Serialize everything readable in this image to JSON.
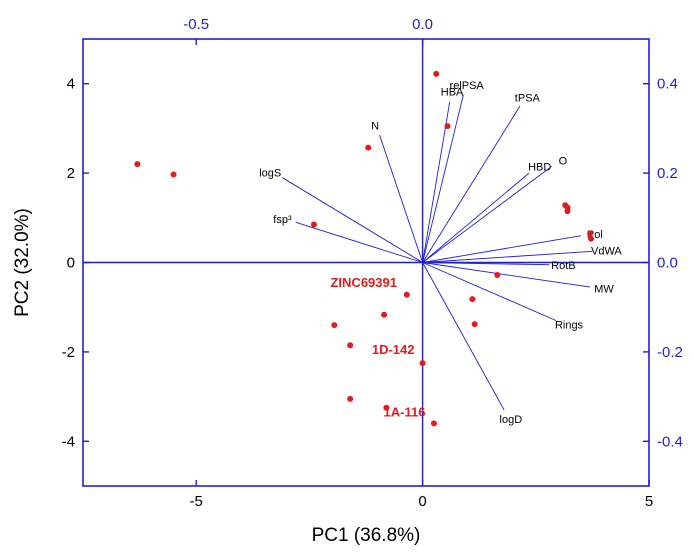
{
  "chart_data": {
    "type": "scatter",
    "subtype": "PCA biplot",
    "xlabel": "PC1 (36.8%)",
    "ylabel": "PC2 (32.0%)",
    "xlim": [
      -7.5,
      5
    ],
    "ylim": [
      -5,
      5
    ],
    "x_ticks": [
      -5,
      0,
      5
    ],
    "y_ticks": [
      -4,
      -2,
      0,
      2,
      4
    ],
    "x_tick_labels": [
      "-5",
      "0",
      "5"
    ],
    "y_tick_labels": [
      "-4",
      "-2",
      "0",
      "2",
      "4"
    ],
    "top_axis": {
      "ticks": [
        -0.5,
        0.0
      ],
      "tick_labels": [
        "-0.5",
        "0.0"
      ]
    },
    "right_axis": {
      "ticks": [
        0.4,
        0.2,
        0.0,
        -0.2,
        -0.4
      ],
      "tick_labels": [
        "0.4",
        "0.2",
        "0.0",
        "-0.2",
        "-0.4"
      ]
    },
    "loadings_per_unit": 0.1,
    "colors": {
      "axis": "#1f1fd6",
      "points": "#e41a1c",
      "vectors": "#1f1fd6"
    },
    "points": [
      {
        "x": -6.3,
        "y": 2.2
      },
      {
        "x": -5.5,
        "y": 1.97
      },
      {
        "x": -2.4,
        "y": 0.85
      },
      {
        "x": -1.2,
        "y": 2.57
      },
      {
        "x": 0.3,
        "y": 4.22
      },
      {
        "x": 0.55,
        "y": 3.05
      },
      {
        "x": 3.15,
        "y": 1.28
      },
      {
        "x": 3.2,
        "y": 1.23
      },
      {
        "x": 3.2,
        "y": 1.15
      },
      {
        "x": 3.7,
        "y": 0.65
      },
      {
        "x": 3.72,
        "y": 0.53
      },
      {
        "x": 1.65,
        "y": -0.28
      },
      {
        "x": -0.35,
        "y": -0.72
      },
      {
        "x": 1.1,
        "y": -0.82
      },
      {
        "x": 1.15,
        "y": -1.38
      },
      {
        "x": -0.85,
        "y": -1.17
      },
      {
        "x": -1.95,
        "y": -1.4
      },
      {
        "x": -1.6,
        "y": -1.85
      },
      {
        "x": 0.0,
        "y": -2.25
      },
      {
        "x": -1.6,
        "y": -3.05
      },
      {
        "x": -0.8,
        "y": -3.25
      },
      {
        "x": 0.25,
        "y": -3.6
      }
    ],
    "point_labels": [
      {
        "text": "ZINC69391",
        "x": -1.3,
        "y": -0.55
      },
      {
        "text": "1D-142",
        "x": -0.65,
        "y": -2.05
      },
      {
        "text": "1A-116",
        "x": -0.4,
        "y": -3.45
      }
    ],
    "vectors": [
      {
        "name": "HBA",
        "x": 0.06,
        "y": 0.36
      },
      {
        "name": "relPSA",
        "x": 0.09,
        "y": 0.375
      },
      {
        "name": "tPSA",
        "x": 0.215,
        "y": 0.35
      },
      {
        "name": "N",
        "x": -0.095,
        "y": 0.285
      },
      {
        "name": "HBD",
        "x": 0.235,
        "y": 0.2
      },
      {
        "name": "O",
        "x": 0.285,
        "y": 0.215
      },
      {
        "name": "logS",
        "x": -0.31,
        "y": 0.19
      },
      {
        "name": "fsp³",
        "x": -0.28,
        "y": 0.09
      },
      {
        "name": "Pol",
        "x": 0.35,
        "y": 0.06
      },
      {
        "name": "VdWA",
        "x": 0.375,
        "y": 0.025
      },
      {
        "name": "RotB",
        "x": 0.28,
        "y": -0.005
      },
      {
        "name": "MW",
        "x": 0.37,
        "y": -0.055
      },
      {
        "name": "Rings",
        "x": 0.295,
        "y": -0.13
      },
      {
        "name": "logD",
        "x": 0.18,
        "y": -0.33
      }
    ]
  }
}
